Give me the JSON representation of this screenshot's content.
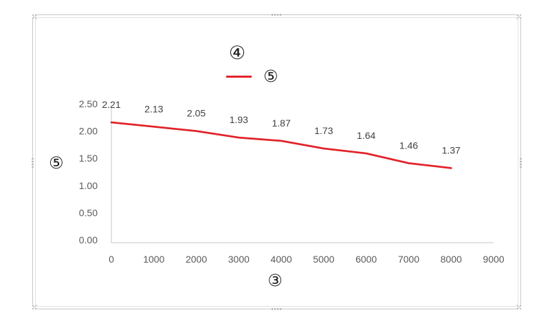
{
  "chart": {
    "object_type": "embedded-chart-selected"
  },
  "colors": {
    "series_line": "#e2232a",
    "axis_line": "#c6c6c6",
    "tick_text": "#595959",
    "data_label_text": "#404040"
  },
  "chart_data": {
    "type": "line",
    "title": "④",
    "legend": [
      "⑤"
    ],
    "legend_position": "top",
    "xlabel": "③",
    "ylabel": "⑤",
    "x": [
      0,
      1000,
      2000,
      3000,
      4000,
      5000,
      6000,
      7000,
      8000
    ],
    "values": [
      2.21,
      2.13,
      2.05,
      1.93,
      1.87,
      1.73,
      1.64,
      1.46,
      1.37
    ],
    "data_labels": [
      "2.21",
      "2.13",
      "2.05",
      "1.93",
      "1.87",
      "1.73",
      "1.64",
      "1.46",
      "1.37"
    ],
    "xlim": [
      0,
      9000
    ],
    "ylim": [
      0.0,
      2.5
    ],
    "x_ticks": [
      "0",
      "1000",
      "2000",
      "3000",
      "4000",
      "5000",
      "6000",
      "7000",
      "8000",
      "9000"
    ],
    "x_tick_values": [
      0,
      1000,
      2000,
      3000,
      4000,
      5000,
      6000,
      7000,
      8000,
      9000
    ],
    "y_ticks": [
      "0.00",
      "0.50",
      "1.00",
      "1.50",
      "2.00",
      "2.50"
    ],
    "y_tick_values": [
      0.0,
      0.5,
      1.0,
      1.5,
      2.0,
      2.5
    ],
    "grid": false,
    "data_labels_position": "above"
  }
}
